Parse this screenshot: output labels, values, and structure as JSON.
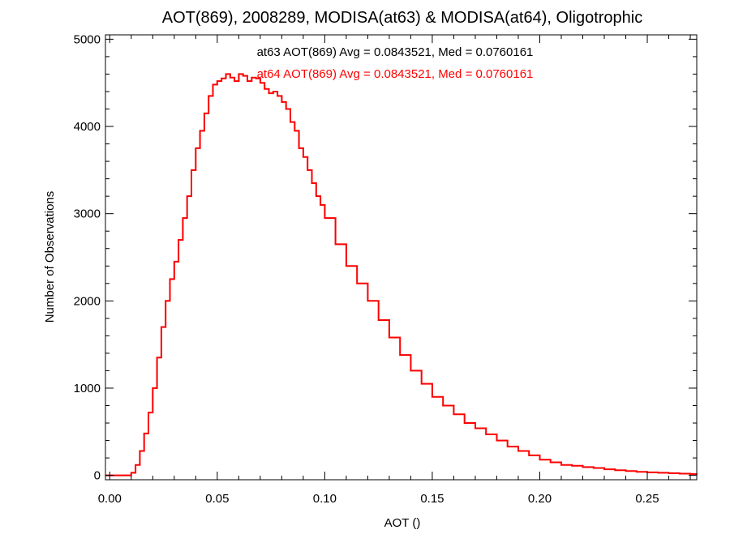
{
  "chart_data": {
    "type": "histogram-step",
    "title": "AOT(869), 2008289, MODISA(at63) & MODISA(at64), Oligotrophic",
    "xlabel": "AOT ()",
    "ylabel": "Number of Observations",
    "xlim": [
      -0.002,
      0.273
    ],
    "ylim": [
      -50,
      5050
    ],
    "xticks": [
      0.0,
      0.05,
      0.1,
      0.15,
      0.2,
      0.25
    ],
    "xtick_labels": [
      "0.00",
      "0.05",
      "0.10",
      "0.15",
      "0.20",
      "0.25"
    ],
    "yticks": [
      0,
      1000,
      2000,
      3000,
      4000,
      5000
    ],
    "ytick_labels": [
      "0",
      "1000",
      "2000",
      "3000",
      "4000",
      "5000"
    ],
    "grid": false,
    "annotations": [
      {
        "text": "at63 AOT(869) Avg = 0.0843521, Med = 0.0760161",
        "color": "#000000"
      },
      {
        "text": "at64 AOT(869) Avg = 0.0843521, Med = 0.0760161",
        "color": "#ff0000"
      }
    ],
    "series": [
      {
        "color": "#000000",
        "x": [
          -0.002,
          0.0,
          0.005,
          0.01,
          0.012,
          0.014,
          0.016,
          0.018,
          0.02,
          0.022,
          0.024,
          0.026,
          0.028,
          0.03,
          0.032,
          0.034,
          0.036,
          0.038,
          0.04,
          0.042,
          0.044,
          0.046,
          0.048,
          0.05,
          0.052,
          0.054,
          0.056,
          0.058,
          0.06,
          0.062,
          0.064,
          0.066,
          0.068,
          0.07,
          0.072,
          0.074,
          0.076,
          0.078,
          0.08,
          0.082,
          0.084,
          0.086,
          0.088,
          0.09,
          0.092,
          0.094,
          0.096,
          0.098,
          0.1,
          0.105,
          0.11,
          0.115,
          0.12,
          0.125,
          0.13,
          0.135,
          0.14,
          0.145,
          0.15,
          0.155,
          0.16,
          0.165,
          0.17,
          0.175,
          0.18,
          0.185,
          0.19,
          0.195,
          0.2,
          0.205,
          0.21,
          0.215,
          0.22,
          0.225,
          0.23,
          0.235,
          0.24,
          0.245,
          0.25,
          0.255,
          0.26,
          0.265,
          0.27,
          0.273
        ],
        "y": [
          0,
          0,
          0,
          30,
          120,
          280,
          480,
          720,
          1000,
          1350,
          1700,
          2000,
          2250,
          2450,
          2700,
          2950,
          3200,
          3500,
          3750,
          3950,
          4150,
          4350,
          4480,
          4520,
          4550,
          4600,
          4560,
          4520,
          4600,
          4580,
          4520,
          4560,
          4550,
          4500,
          4430,
          4380,
          4400,
          4350,
          4280,
          4200,
          4050,
          3950,
          3750,
          3650,
          3500,
          3350,
          3200,
          3100,
          2950,
          2650,
          2400,
          2200,
          2000,
          1780,
          1580,
          1380,
          1200,
          1050,
          900,
          800,
          700,
          600,
          540,
          470,
          400,
          330,
          280,
          230,
          180,
          150,
          120,
          110,
          95,
          85,
          70,
          60,
          50,
          40,
          35,
          30,
          25,
          20,
          15,
          10
        ]
      },
      {
        "color": "#ff0000",
        "x": [
          -0.002,
          0.0,
          0.005,
          0.01,
          0.012,
          0.014,
          0.016,
          0.018,
          0.02,
          0.022,
          0.024,
          0.026,
          0.028,
          0.03,
          0.032,
          0.034,
          0.036,
          0.038,
          0.04,
          0.042,
          0.044,
          0.046,
          0.048,
          0.05,
          0.052,
          0.054,
          0.056,
          0.058,
          0.06,
          0.062,
          0.064,
          0.066,
          0.068,
          0.07,
          0.072,
          0.074,
          0.076,
          0.078,
          0.08,
          0.082,
          0.084,
          0.086,
          0.088,
          0.09,
          0.092,
          0.094,
          0.096,
          0.098,
          0.1,
          0.105,
          0.11,
          0.115,
          0.12,
          0.125,
          0.13,
          0.135,
          0.14,
          0.145,
          0.15,
          0.155,
          0.16,
          0.165,
          0.17,
          0.175,
          0.18,
          0.185,
          0.19,
          0.195,
          0.2,
          0.205,
          0.21,
          0.215,
          0.22,
          0.225,
          0.23,
          0.235,
          0.24,
          0.245,
          0.25,
          0.255,
          0.26,
          0.265,
          0.27,
          0.273
        ],
        "y": [
          0,
          0,
          0,
          30,
          120,
          280,
          480,
          720,
          1000,
          1350,
          1700,
          2000,
          2250,
          2450,
          2700,
          2950,
          3200,
          3500,
          3750,
          3950,
          4150,
          4350,
          4480,
          4520,
          4550,
          4600,
          4560,
          4520,
          4600,
          4580,
          4520,
          4560,
          4550,
          4500,
          4430,
          4380,
          4400,
          4350,
          4280,
          4200,
          4050,
          3950,
          3750,
          3650,
          3500,
          3350,
          3200,
          3100,
          2950,
          2650,
          2400,
          2200,
          2000,
          1780,
          1580,
          1380,
          1200,
          1050,
          900,
          800,
          700,
          600,
          540,
          470,
          400,
          330,
          280,
          230,
          180,
          150,
          120,
          110,
          95,
          85,
          70,
          60,
          50,
          40,
          35,
          30,
          25,
          20,
          15,
          10
        ]
      }
    ]
  }
}
